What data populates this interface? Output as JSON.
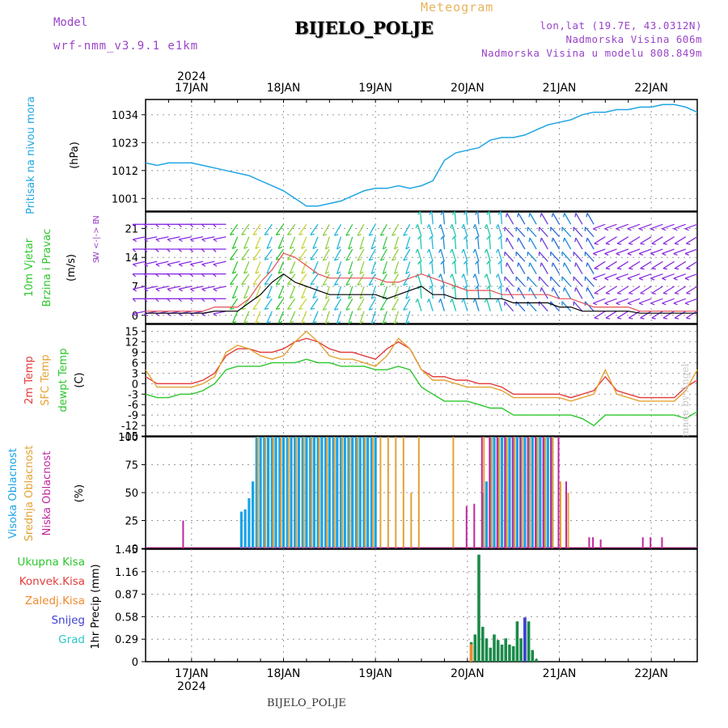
{
  "header": {
    "title": "BIJELO_POLJE",
    "subtitle": "Meteogram",
    "model_label": "Model",
    "model_name": "wrf-nmm_v3.9.1 e1km",
    "info": [
      "lon,lat (19.7E, 43.0312N)",
      "Nadmorska Visina 606m",
      "Nadmorska Visina u modelu 808.849m"
    ],
    "footer": "BIJELO_POLJE",
    "credit": "made by Angel"
  },
  "time_axis": {
    "year": "2024",
    "days": [
      "17JAN",
      "18JAN",
      "19JAN",
      "20JAN",
      "21JAN",
      "22JAN"
    ],
    "start_hour": 0,
    "end_hour": 144
  },
  "chart_data": [
    {
      "type": "line",
      "name": "pressure",
      "ylabel_lines": [
        "Pritisak na nivou mora",
        "(hPa)"
      ],
      "yticks": [
        1001,
        1012,
        1023,
        1034
      ],
      "ylim": [
        996,
        1040
      ],
      "color": "#21a5e3",
      "x": [
        0,
        3,
        6,
        9,
        12,
        15,
        18,
        21,
        24,
        27,
        30,
        33,
        36,
        39,
        42,
        45,
        48,
        51,
        54,
        57,
        60,
        63,
        66,
        69,
        72,
        75,
        78,
        81,
        84,
        87,
        90,
        93,
        96,
        99,
        102,
        105,
        108,
        111,
        114,
        117,
        120,
        123,
        126,
        129,
        132,
        135,
        138,
        141,
        144
      ],
      "values": [
        1015,
        1014,
        1015,
        1015,
        1015,
        1014,
        1013,
        1012,
        1011,
        1010,
        1008,
        1006,
        1004,
        1001,
        998,
        998,
        999,
        1000,
        1002,
        1004,
        1005,
        1005,
        1006,
        1005,
        1006,
        1008,
        1016,
        1019,
        1020,
        1021,
        1024,
        1025,
        1025,
        1026,
        1028,
        1030,
        1031,
        1032,
        1034,
        1035,
        1035,
        1036,
        1036,
        1037,
        1037,
        1038,
        1038,
        1037,
        1035
      ]
    },
    {
      "type": "line",
      "name": "wind",
      "ylabel_lines": [
        "10m Vjetar",
        "Brzina i Pravac",
        "(m/s)"
      ],
      "compass": [
        "N",
        "W <-|-> E",
        "S"
      ],
      "yticks": [
        0,
        7,
        14,
        21
      ],
      "ylim": [
        -2,
        25
      ],
      "speed_color": "#000000",
      "gust_color": "#e35050",
      "x": [
        0,
        3,
        6,
        9,
        12,
        15,
        18,
        21,
        24,
        27,
        30,
        33,
        36,
        39,
        42,
        45,
        48,
        51,
        54,
        57,
        60,
        63,
        66,
        69,
        72,
        75,
        78,
        81,
        84,
        87,
        90,
        93,
        96,
        99,
        102,
        105,
        108,
        111,
        114,
        117,
        120,
        123,
        126,
        129,
        132,
        135,
        138,
        141,
        144
      ],
      "speed": [
        0.5,
        0.5,
        0.5,
        0.5,
        0.5,
        0.5,
        1,
        1,
        1,
        3,
        5,
        8,
        10,
        8,
        7,
        6,
        5,
        5,
        5,
        5,
        5,
        4,
        5,
        6,
        7,
        5,
        5,
        4,
        4,
        4,
        4,
        4,
        3,
        3,
        3,
        3,
        2,
        2,
        1,
        1,
        1,
        1,
        1,
        0.5,
        0.5,
        0.5,
        0.5,
        0.5,
        0.5
      ],
      "gust": [
        1,
        1,
        1,
        1,
        1,
        1,
        2,
        2,
        2,
        4,
        8,
        11,
        15,
        14,
        12,
        10,
        9,
        9,
        9,
        9,
        9,
        8,
        8,
        9,
        10,
        9,
        8,
        7,
        6,
        6,
        6,
        5,
        5,
        5,
        5,
        5,
        4,
        4,
        3,
        2,
        2,
        2,
        2,
        1,
        1,
        1,
        1,
        1,
        1
      ]
    },
    {
      "type": "line",
      "name": "temperature",
      "ylabel_lines": [
        "2m Temp",
        "SFC Temp",
        "dewpt Temp",
        "(C)"
      ],
      "yticks": [
        -15,
        -12,
        -9,
        -6,
        -3,
        0,
        3,
        6,
        9,
        12,
        15
      ],
      "ylim": [
        -15,
        17
      ],
      "series": [
        {
          "name": "2m Temp",
          "color": "#e33c3c",
          "values": [
            2,
            0,
            0,
            0,
            0,
            1,
            3,
            8,
            10,
            10,
            9,
            9,
            10,
            12,
            13,
            12,
            10,
            9,
            9,
            8,
            7,
            10,
            12,
            10,
            4,
            2,
            2,
            1,
            1,
            0,
            0,
            -1,
            -3,
            -3,
            -3,
            -3,
            -3,
            -4,
            -3,
            -2,
            2,
            -2,
            -3,
            -4,
            -4,
            -4,
            -4,
            -1,
            1
          ]
        },
        {
          "name": "SFC Temp",
          "color": "#e3a232",
          "values": [
            4,
            -1,
            -1,
            -1,
            -1,
            0,
            2,
            9,
            11,
            10,
            8,
            7,
            8,
            12,
            15,
            12,
            8,
            7,
            7,
            6,
            5,
            8,
            13,
            10,
            4,
            1,
            1,
            0,
            -1,
            -1,
            -1,
            -2,
            -4,
            -4,
            -4,
            -4,
            -4,
            -5,
            -4,
            -3,
            4,
            -3,
            -4,
            -5,
            -5,
            -5,
            -5,
            -2,
            4
          ]
        },
        {
          "name": "dewpt Temp",
          "color": "#2cc72c",
          "values": [
            -3,
            -4,
            -4,
            -3,
            -3,
            -2,
            0,
            4,
            5,
            5,
            5,
            6,
            6,
            6,
            7,
            6,
            6,
            5,
            5,
            5,
            4,
            4,
            5,
            4,
            -1,
            -3,
            -5,
            -5,
            -5,
            -6,
            -7,
            -7,
            -9,
            -9,
            -9,
            -9,
            -9,
            -9,
            -10,
            -12,
            -9,
            -9,
            -9,
            -9,
            -9,
            -9,
            -9,
            -10,
            -8
          ]
        }
      ]
    },
    {
      "type": "bar",
      "name": "cloudiness",
      "ylabel_lines": [
        "Visoka Oblacnost",
        "Srednja Oblacnost",
        "Niska Oblacnost",
        "(%)"
      ],
      "yticks": [
        0,
        25,
        50,
        75,
        100
      ],
      "ylim": [
        0,
        100
      ],
      "series": [
        {
          "name": "Visoka Oblacnost",
          "color": "#1aa3e8",
          "x": [
            25,
            26,
            27,
            28,
            29,
            30,
            31,
            32,
            33,
            34,
            35,
            36,
            37,
            38,
            39,
            40,
            41,
            42,
            43,
            44,
            45,
            46,
            47,
            48,
            49,
            50,
            51,
            52,
            53,
            54,
            55,
            56,
            57,
            58,
            59,
            60,
            62,
            64,
            66,
            88,
            89,
            90,
            91,
            92,
            93,
            94,
            95,
            96,
            97,
            98,
            99,
            100,
            101,
            102,
            103,
            104,
            105,
            106
          ],
          "values": [
            33,
            35,
            45,
            60,
            100,
            100,
            100,
            100,
            100,
            100,
            100,
            100,
            100,
            100,
            100,
            100,
            100,
            100,
            100,
            100,
            100,
            100,
            100,
            100,
            100,
            100,
            100,
            100,
            100,
            100,
            100,
            100,
            100,
            100,
            100,
            100,
            0,
            0,
            0,
            50,
            60,
            100,
            100,
            100,
            100,
            100,
            100,
            100,
            100,
            100,
            100,
            100,
            100,
            100,
            100,
            100,
            100,
            100
          ]
        },
        {
          "name": "Srednja Oblacnost",
          "color": "#e3a232",
          "x": [
            29,
            31,
            33,
            35,
            37,
            39,
            41,
            43,
            45,
            47,
            49,
            51,
            53,
            55,
            57,
            59,
            61,
            63,
            65,
            67,
            69,
            71,
            80,
            88,
            90,
            92,
            94,
            96,
            98,
            100,
            102,
            104,
            106,
            108,
            110
          ],
          "values": [
            100,
            100,
            100,
            100,
            100,
            100,
            100,
            100,
            100,
            100,
            100,
            100,
            100,
            100,
            100,
            100,
            100,
            100,
            100,
            100,
            50,
            100,
            100,
            100,
            100,
            100,
            100,
            100,
            100,
            100,
            100,
            100,
            100,
            60,
            50
          ]
        },
        {
          "name": "Niska Oblacnost",
          "color": "#c0279e",
          "x": [
            10,
            84,
            86,
            88,
            90,
            92,
            94,
            96,
            98,
            100,
            102,
            104,
            106,
            108,
            110,
            116,
            117,
            119,
            130,
            132,
            135
          ],
          "values": [
            25,
            38,
            40,
            100,
            100,
            100,
            100,
            100,
            100,
            100,
            100,
            100,
            100,
            100,
            60,
            10,
            10,
            8,
            10,
            10,
            10
          ]
        }
      ]
    },
    {
      "type": "bar",
      "name": "precipitation",
      "ylabel_lines": [
        "1hr Precip (mm)"
      ],
      "legend": [
        {
          "name": "Ukupna Kisa",
          "color": "#2cc72c"
        },
        {
          "name": "Konvek.Kisa",
          "color": "#e33c3c"
        },
        {
          "name": "Zaledj.Kisa",
          "color": "#f08a2c"
        },
        {
          "name": "Snijeg",
          "color": "#4040d8"
        },
        {
          "name": "Grad",
          "color": "#2cc7c7"
        }
      ],
      "yticks": [
        "0",
        "0.29",
        "0.58",
        "0.87",
        "1.16",
        "1.45"
      ],
      "ylim": [
        0,
        1.45
      ],
      "total_color": "#1a8a4a",
      "x": [
        85,
        86,
        87,
        88,
        89,
        90,
        91,
        92,
        93,
        94,
        95,
        96,
        97,
        98,
        99,
        100,
        101,
        102
      ],
      "values": [
        0.25,
        0.35,
        1.38,
        0.45,
        0.3,
        0.18,
        0.35,
        0.28,
        0.22,
        0.3,
        0.22,
        0.2,
        0.52,
        0.3,
        0.57,
        0.52,
        0.15,
        0.03
      ],
      "snow": [
        0,
        0,
        0,
        0,
        0,
        0,
        0,
        0,
        0,
        0,
        0,
        0,
        0,
        0,
        0.57,
        0,
        0,
        0
      ]
    }
  ]
}
